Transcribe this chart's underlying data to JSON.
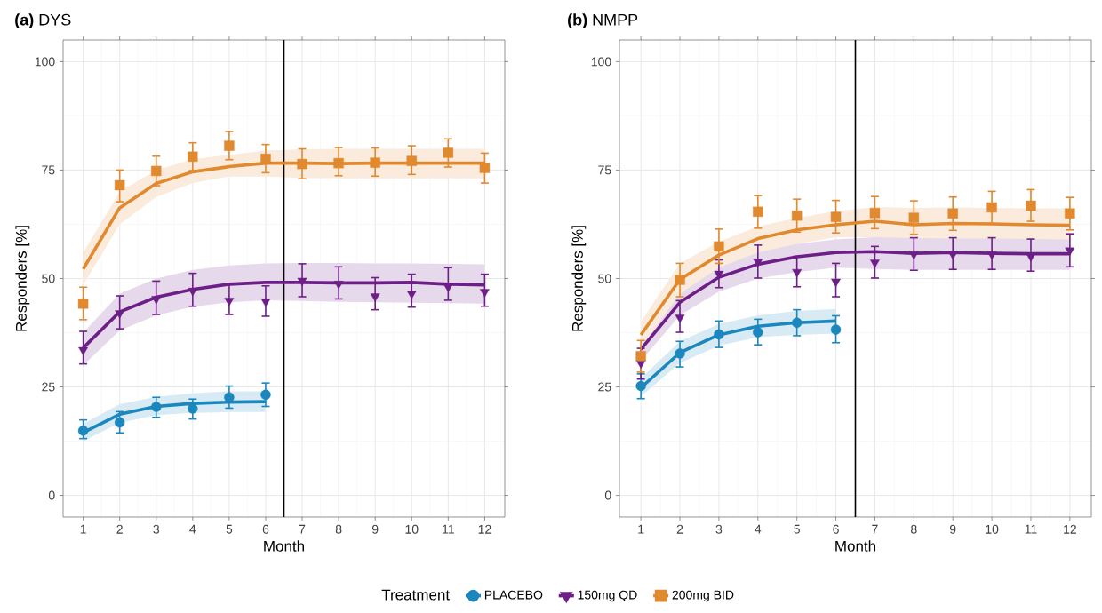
{
  "chart_data": [
    {
      "type": "line",
      "title": "**(a)** DYS",
      "xlabel": "Month",
      "ylabel": "Responders [%]",
      "xlim": [
        0.45,
        12.55
      ],
      "ylim": [
        -5,
        105
      ],
      "xticks": [
        1,
        2,
        3,
        4,
        5,
        6,
        7,
        8,
        9,
        10,
        11,
        12
      ],
      "yticks": [
        0,
        25,
        50,
        75,
        100
      ],
      "grid": true,
      "legend": "bottom",
      "legend_title": "Treatment",
      "ref_lines": [
        {
          "axis": "x",
          "value": 6.5,
          "color": "#000000"
        }
      ],
      "series": [
        {
          "color": "#1b87bd",
          "x": [
            1,
            2,
            3,
            4,
            5,
            6
          ],
          "values": [
            14.5,
            18.7,
            20.5,
            21.2,
            21.5,
            21.6
          ],
          "lower": [
            12.5,
            16.7,
            18.5,
            19.0,
            19.2,
            19.2
          ],
          "upper": [
            16.5,
            21.0,
            22.7,
            23.5,
            24.0,
            24.0
          ]
        },
        {
          "color": "#6d1f87",
          "x": [
            1,
            2,
            3,
            4,
            5,
            6,
            7,
            8,
            9,
            10,
            11,
            12
          ],
          "values": [
            34.0,
            42.3,
            45.7,
            47.5,
            48.7,
            49.1,
            49.1,
            49.0,
            49.0,
            49.1,
            48.7,
            48.5
          ],
          "lower": [
            30.0,
            38.0,
            41.5,
            43.5,
            44.5,
            45.0,
            44.8,
            44.6,
            44.5,
            44.4,
            44.3,
            44.2
          ],
          "upper": [
            37.5,
            46.5,
            50.0,
            52.0,
            53.0,
            53.5,
            53.6,
            53.6,
            53.5,
            53.5,
            53.4,
            53.3
          ]
        },
        {
          "color": "#e0892f",
          "x": [
            1,
            2,
            3,
            4,
            5,
            6,
            7,
            8,
            9,
            10,
            11,
            12
          ],
          "values": [
            52.2,
            66.3,
            71.9,
            74.6,
            75.8,
            76.6,
            76.6,
            76.5,
            76.6,
            76.6,
            76.6,
            76.6
          ],
          "lower": [
            48.5,
            62.5,
            68.8,
            72.0,
            73.5,
            73.5,
            73.2,
            73.1,
            73.1,
            73.1,
            73.1,
            73.1
          ],
          "upper": [
            56.0,
            70.0,
            75.0,
            77.5,
            78.5,
            79.5,
            79.8,
            79.9,
            79.9,
            79.9,
            79.9,
            79.9
          ]
        },
        {
          "type": "scatter",
          "name": "PLACEBO",
          "color": "#1b87bd",
          "marker": "circle",
          "x": [
            1,
            2,
            3,
            4,
            5,
            6
          ],
          "values": [
            14.9,
            16.8,
            20.4,
            20.0,
            22.6,
            23.2
          ],
          "errors": [
            [
              13.1,
              17.4
            ],
            [
              14.4,
              19.3
            ],
            [
              18.0,
              22.6
            ],
            [
              17.6,
              22.2
            ],
            [
              20.1,
              25.2
            ],
            [
              20.5,
              25.9
            ]
          ]
        },
        {
          "type": "scatter",
          "name": "150mg QD",
          "color": "#6d1f87",
          "marker": "triangle",
          "x": [
            1,
            2,
            3,
            4,
            5,
            6,
            7,
            8,
            9,
            10,
            11,
            12
          ],
          "values": [
            33.5,
            42.0,
            45.3,
            47.2,
            44.9,
            44.7,
            49.5,
            48.8,
            45.9,
            46.5,
            48.1,
            46.9
          ],
          "errors": [
            [
              30.3,
              37.8
            ],
            [
              38.4,
              46.0
            ],
            [
              41.7,
              49.4
            ],
            [
              43.6,
              51.2
            ],
            [
              41.7,
              48.7
            ],
            [
              41.3,
              48.3
            ],
            [
              45.8,
              53.4
            ],
            [
              45.3,
              52.7
            ],
            [
              42.8,
              50.2
            ],
            [
              43.4,
              51.0
            ],
            [
              45.0,
              52.5
            ],
            [
              43.6,
              51.0
            ]
          ]
        },
        {
          "type": "scatter",
          "name": "200mg BID",
          "color": "#e0892f",
          "marker": "square",
          "x": [
            1,
            2,
            3,
            4,
            5,
            6,
            7,
            8,
            9,
            10,
            11,
            12
          ],
          "values": [
            44.2,
            71.5,
            74.8,
            78.1,
            80.6,
            77.6,
            76.4,
            76.6,
            76.7,
            77.1,
            79.0,
            75.5
          ],
          "errors": [
            [
              40.5,
              48.0
            ],
            [
              67.7,
              75.0
            ],
            [
              71.4,
              78.2
            ],
            [
              74.9,
              81.3
            ],
            [
              77.4,
              83.9
            ],
            [
              74.4,
              80.9
            ],
            [
              73.0,
              79.9
            ],
            [
              73.7,
              80.2
            ],
            [
              73.6,
              80.1
            ],
            [
              74.0,
              80.6
            ],
            [
              75.7,
              82.2
            ],
            [
              72.0,
              78.9
            ]
          ]
        }
      ]
    },
    {
      "type": "line",
      "title": "**(b)** NMPP",
      "xlabel": "Month",
      "ylabel": "Responders [%]",
      "xlim": [
        0.45,
        12.55
      ],
      "ylim": [
        -5,
        105
      ],
      "xticks": [
        1,
        2,
        3,
        4,
        5,
        6,
        7,
        8,
        9,
        10,
        11,
        12
      ],
      "yticks": [
        0,
        25,
        50,
        75,
        100
      ],
      "grid": true,
      "ref_lines": [
        {
          "axis": "x",
          "value": 6.5,
          "color": "#000000"
        }
      ],
      "series": [
        {
          "color": "#1b87bd",
          "x": [
            1,
            2,
            3,
            4,
            5,
            6
          ],
          "values": [
            24.8,
            32.9,
            37.0,
            39.0,
            39.8,
            40.2
          ],
          "lower": [
            22.8,
            30.5,
            34.5,
            36.5,
            37.0,
            37.3
          ],
          "upper": [
            27.0,
            35.5,
            39.5,
            41.5,
            42.5,
            43.0
          ]
        },
        {
          "color": "#6d1f87",
          "x": [
            1,
            2,
            3,
            4,
            5,
            6,
            7,
            8,
            9,
            10,
            11,
            12
          ],
          "values": [
            33.7,
            44.5,
            50.3,
            53.3,
            55.0,
            56.0,
            56.2,
            55.8,
            56.0,
            55.8,
            55.7,
            55.7
          ],
          "lower": [
            31.0,
            41.5,
            47.0,
            50.0,
            51.5,
            52.5,
            52.2,
            52.0,
            52.0,
            52.0,
            52.0,
            52.0
          ],
          "upper": [
            37.0,
            48.0,
            53.5,
            56.5,
            58.0,
            59.0,
            59.5,
            59.5,
            59.5,
            59.5,
            59.5,
            59.5
          ]
        },
        {
          "color": "#e0892f",
          "x": [
            1,
            2,
            3,
            4,
            5,
            6,
            7,
            8,
            9,
            10,
            11,
            12
          ],
          "values": [
            37.0,
            49.8,
            55.4,
            59.2,
            61.2,
            62.4,
            63.2,
            62.4,
            62.7,
            62.6,
            62.4,
            62.3
          ],
          "lower": [
            34.0,
            46.5,
            52.5,
            56.0,
            58.0,
            59.5,
            59.5,
            59.3,
            59.2,
            59.2,
            59.1,
            59.0
          ],
          "upper": [
            40.0,
            53.5,
            58.5,
            62.0,
            64.0,
            65.5,
            66.5,
            66.3,
            66.4,
            66.3,
            66.2,
            66.2
          ]
        },
        {
          "type": "scatter",
          "color": "#1b87bd",
          "marker": "circle",
          "x": [
            1,
            2,
            3,
            4,
            5,
            6
          ],
          "values": [
            25.2,
            32.7,
            37.1,
            37.6,
            39.8,
            38.2
          ],
          "errors": [
            [
              22.3,
              28.0
            ],
            [
              29.6,
              35.5
            ],
            [
              34.1,
              40.2
            ],
            [
              34.7,
              40.6
            ],
            [
              36.8,
              42.8
            ],
            [
              35.2,
              41.4
            ]
          ]
        },
        {
          "type": "scatter",
          "color": "#6d1f87",
          "marker": "triangle",
          "x": [
            1,
            2,
            3,
            4,
            5,
            6,
            7,
            8,
            9,
            10,
            11,
            12
          ],
          "values": [
            30.5,
            41.0,
            51.1,
            53.9,
            51.5,
            49.3,
            53.7,
            55.6,
            55.6,
            55.6,
            55.1,
            56.5
          ],
          "errors": [
            [
              26.8,
              33.9
            ],
            [
              37.6,
              44.9
            ],
            [
              47.9,
              54.3
            ],
            [
              50.1,
              57.7
            ],
            [
              48.1,
              55.1
            ],
            [
              45.8,
              53.5
            ],
            [
              50.1,
              57.4
            ],
            [
              51.9,
              59.4
            ],
            [
              52.1,
              59.4
            ],
            [
              52.1,
              59.4
            ],
            [
              51.7,
              59.1
            ],
            [
              52.7,
              60.3
            ]
          ]
        },
        {
          "type": "scatter",
          "color": "#e0892f",
          "marker": "square",
          "x": [
            1,
            2,
            3,
            4,
            5,
            6,
            7,
            8,
            9,
            10,
            11,
            12
          ],
          "values": [
            32.1,
            49.7,
            57.4,
            65.4,
            64.5,
            64.2,
            65.1,
            64.0,
            65.0,
            66.4,
            66.8,
            65.0
          ],
          "errors": [
            [
              28.4,
              35.7
            ],
            [
              45.8,
              53.5
            ],
            [
              53.5,
              61.4
            ],
            [
              61.6,
              69.1
            ],
            [
              60.7,
              68.3
            ],
            [
              60.5,
              68.0
            ],
            [
              61.5,
              68.9
            ],
            [
              60.2,
              67.9
            ],
            [
              61.1,
              68.8
            ],
            [
              62.7,
              70.1
            ],
            [
              63.2,
              70.5
            ],
            [
              61.2,
              68.7
            ]
          ]
        }
      ]
    }
  ]
}
